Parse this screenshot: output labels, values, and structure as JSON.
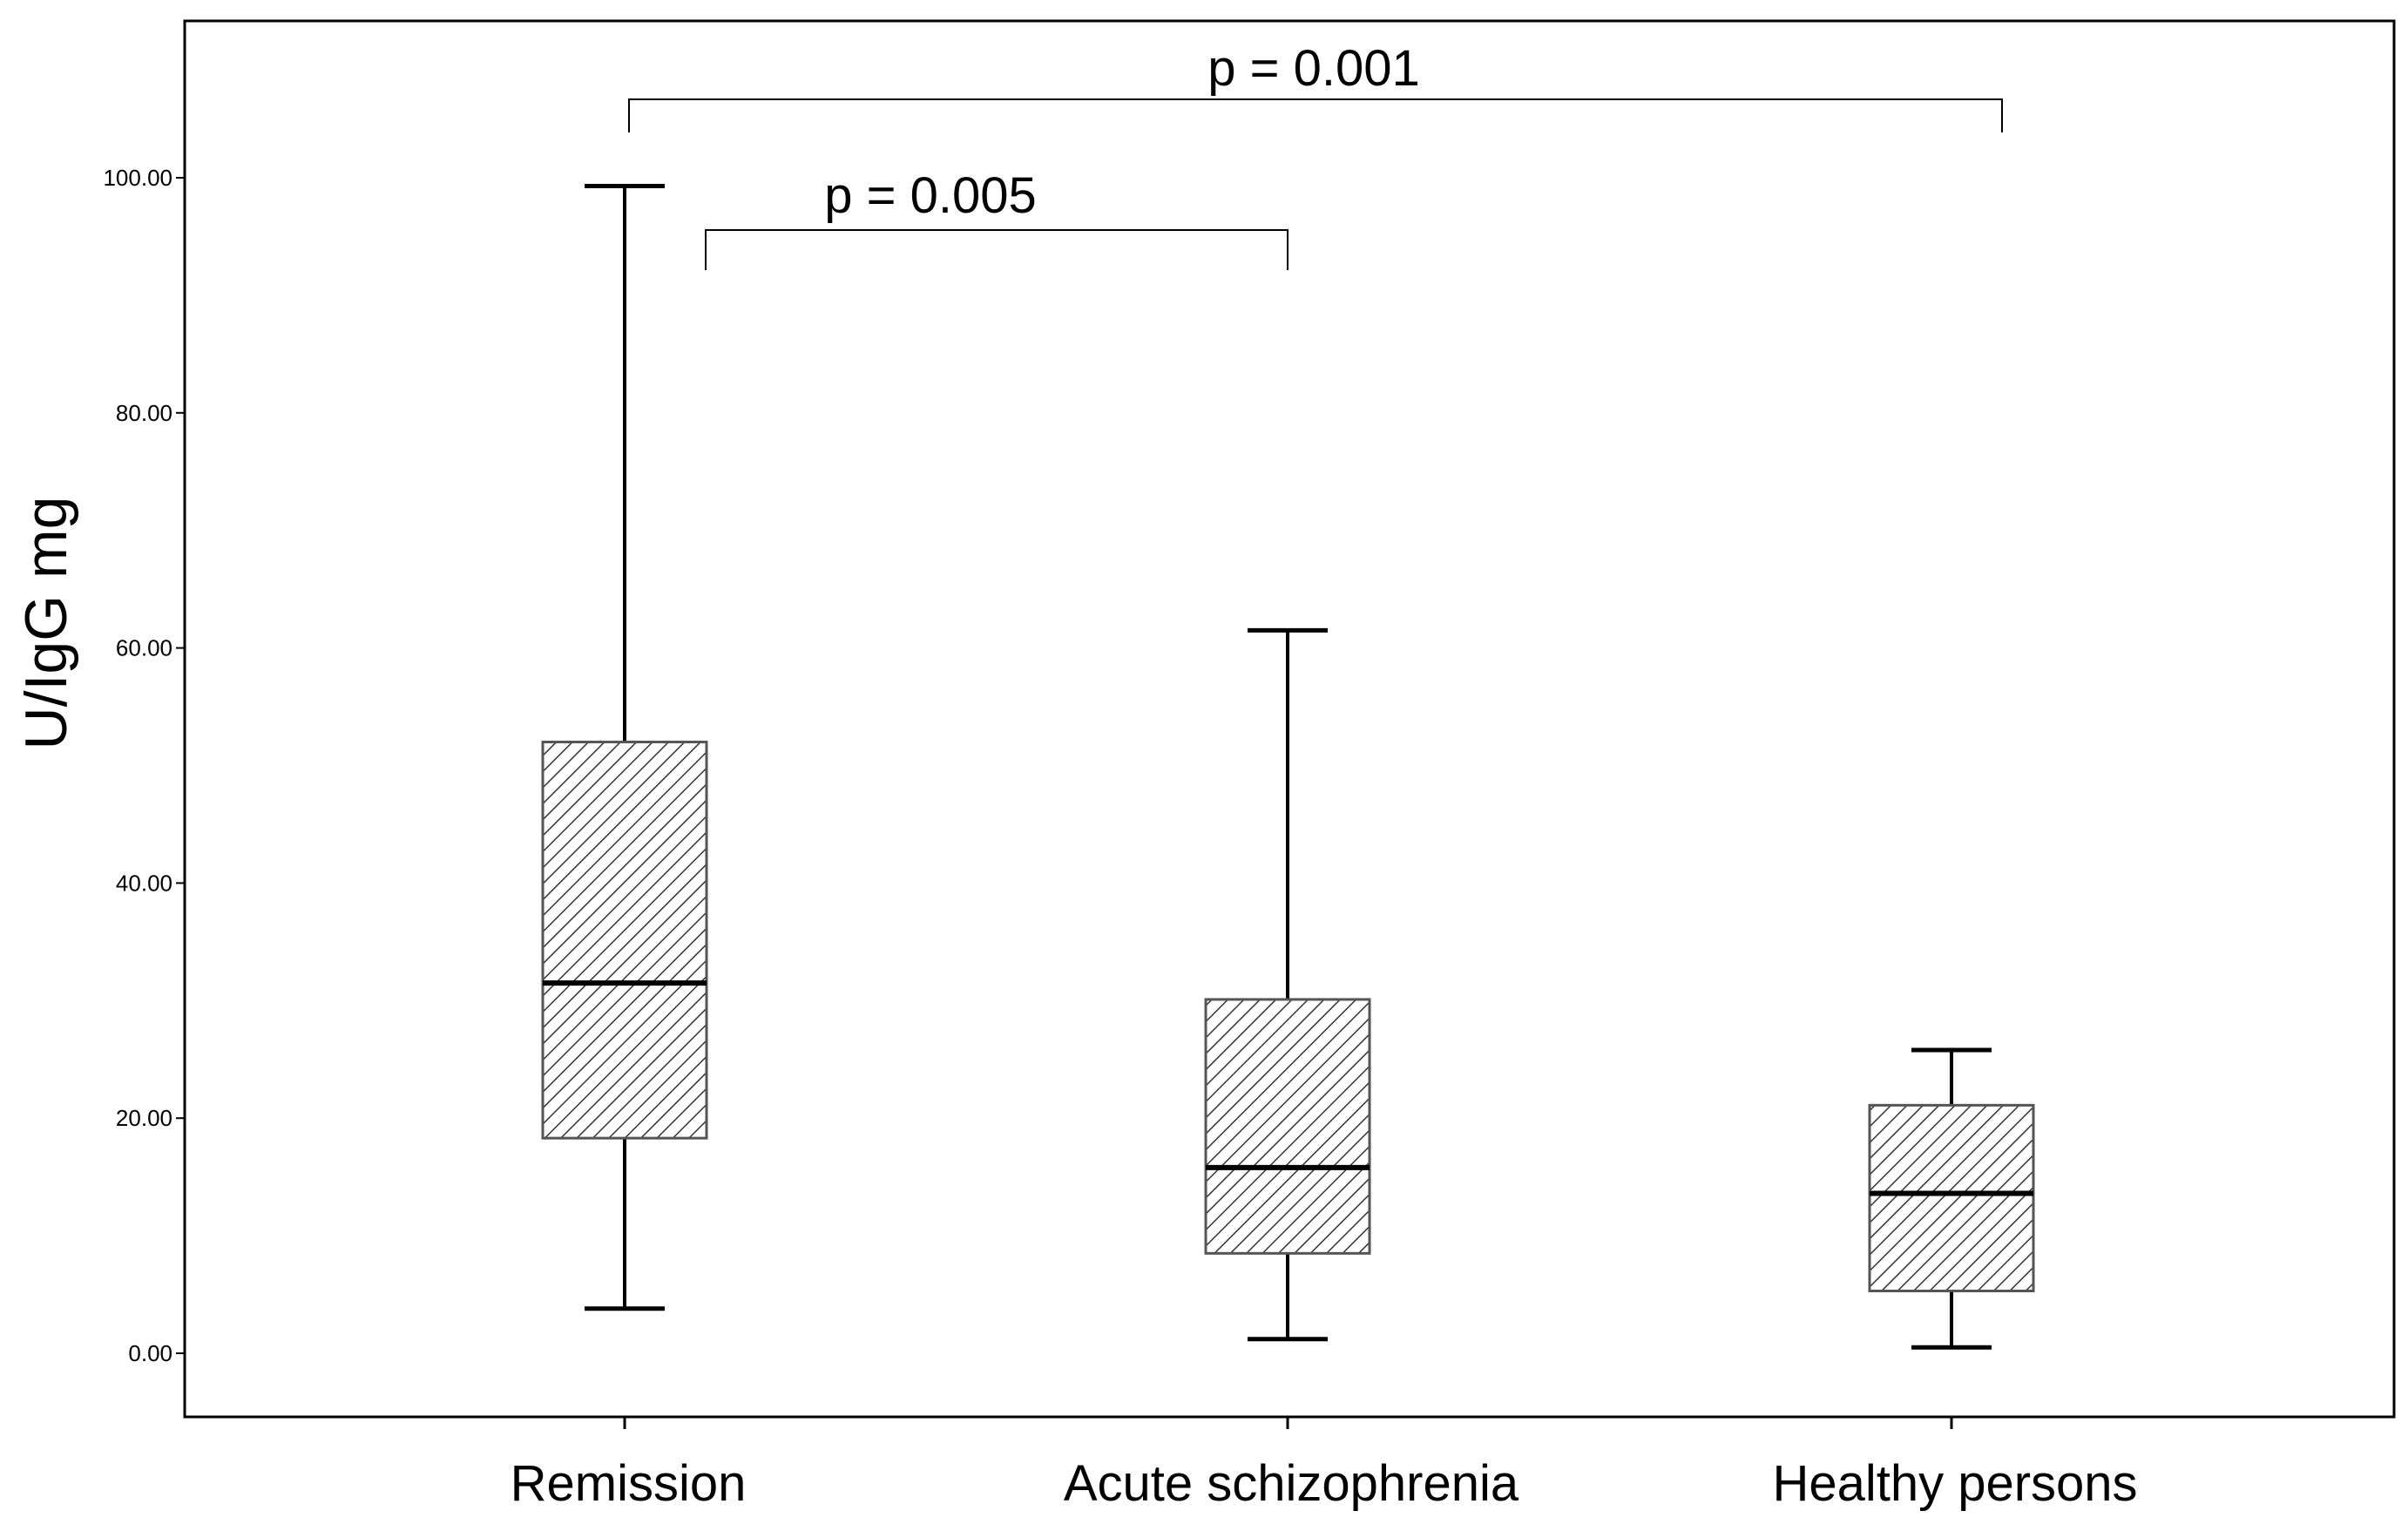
{
  "chart_data": {
    "type": "boxplot",
    "title": "",
    "xlabel": "",
    "ylabel": "U/IgG mg",
    "ylim": [
      -5,
      109
    ],
    "yticks": [
      0,
      20,
      40,
      60,
      80,
      100
    ],
    "ytick_labels": [
      "0.00",
      "20.00",
      "40.00",
      "60.00",
      "80.00",
      "100.00"
    ],
    "grid": false,
    "legend": "none",
    "box_fill": "hatched diagonal",
    "colors": {
      "line": "#000000",
      "box_edge": "#555555",
      "hatch": "#333333",
      "background": "#ffffff"
    },
    "categories": [
      "Remission",
      "Acute schizophrenia",
      "Healthy persons"
    ],
    "boxes": [
      {
        "category": "Remission",
        "whisker_low": 3.8,
        "q1": 18.3,
        "median": 31.5,
        "q3": 52.0,
        "whisker_high": 99.3
      },
      {
        "category": "Acute schizophrenia",
        "whisker_low": 1.2,
        "q1": 8.5,
        "median": 15.8,
        "q3": 30.1,
        "whisker_high": 61.5
      },
      {
        "category": "Healthy persons",
        "whisker_low": 0.5,
        "q1": 5.3,
        "median": 13.6,
        "q3": 21.1,
        "whisker_high": 25.8
      }
    ],
    "annotations": [
      {
        "text": "p = 0.005",
        "from": "Remission",
        "to": "Acute schizophrenia"
      },
      {
        "text": "p = 0.001",
        "from": "Remission",
        "to": "Healthy persons"
      }
    ]
  }
}
